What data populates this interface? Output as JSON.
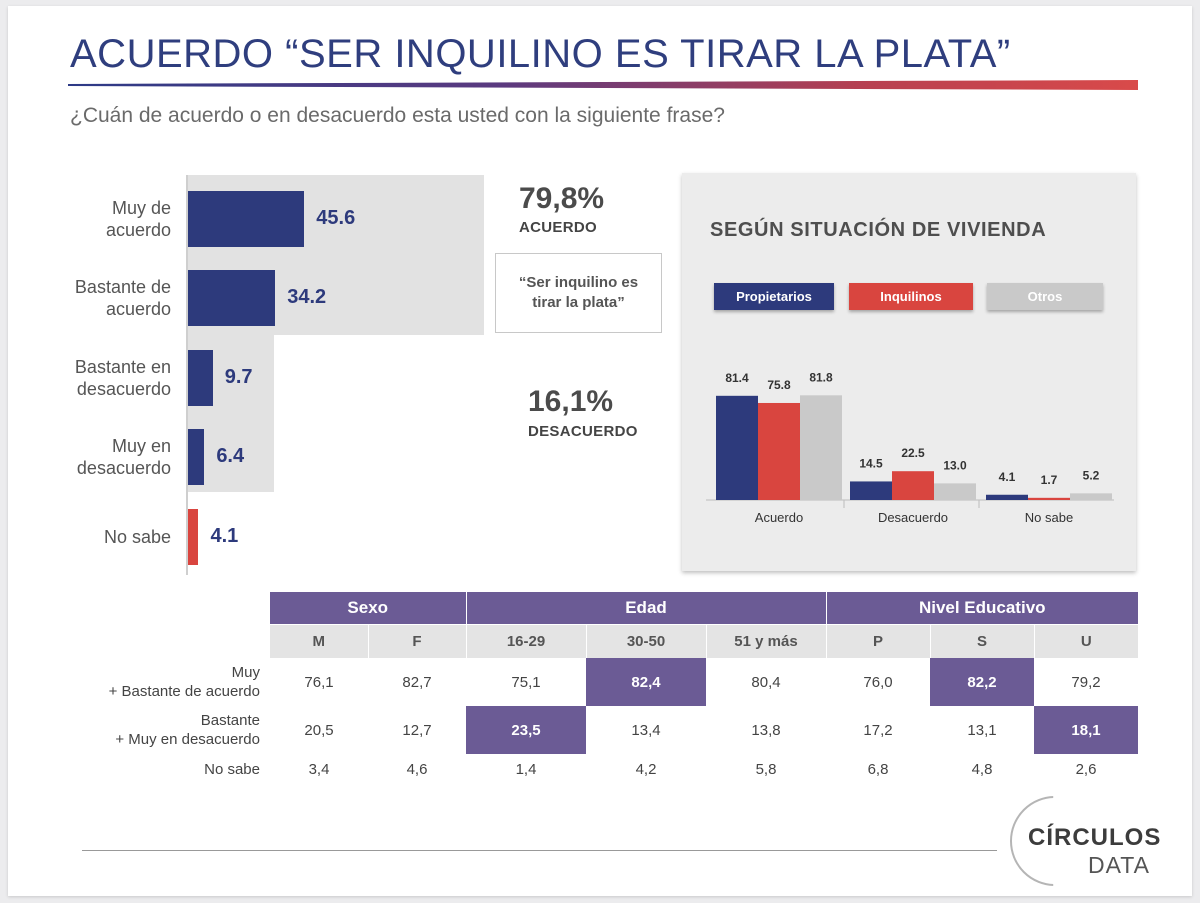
{
  "title": "ACUERDO “SER INQUILINO ES TIRAR LA PLATA”",
  "subtitle": "¿Cuán de acuerdo o en desacuerdo esta usted con la siguiente frase?",
  "summary": {
    "acuerdo_value": "79,8%",
    "acuerdo_label": "ACUERDO",
    "desacuerdo_value": "16,1%",
    "desacuerdo_label": "DESACUERDO",
    "quote": "“Ser inquilino es tirar la plata”"
  },
  "colors": {
    "navy": "#2d3a7c",
    "red": "#d9453f",
    "gray": "#c9c9c9",
    "purple": "#6b5b95"
  },
  "chart_data": [
    {
      "type": "bar",
      "orientation": "horizontal",
      "categories": [
        "Muy de acuerdo",
        "Bastante de acuerdo",
        "Bastante en desacuerdo",
        "Muy en desacuerdo",
        "No sabe"
      ],
      "labels": [
        [
          "Muy de",
          "acuerdo"
        ],
        [
          "Bastante de",
          "acuerdo"
        ],
        [
          "Bastante en",
          "desacuerdo"
        ],
        [
          "Muy en",
          "desacuerdo"
        ],
        [
          "No sabe"
        ]
      ],
      "values": [
        45.6,
        34.2,
        9.7,
        6.4,
        4.1
      ],
      "value_labels": [
        "45.6",
        "34.2",
        "9.7",
        "6.4",
        "4.1"
      ],
      "bar_colors": [
        "#2d3a7c",
        "#2d3a7c",
        "#2d3a7c",
        "#2d3a7c",
        "#d9453f"
      ]
    },
    {
      "type": "bar",
      "title": "SEGÚN SITUACIÓN DE VIVIENDA",
      "categories": [
        "Acuerdo",
        "Desacuerdo",
        "No sabe"
      ],
      "series": [
        {
          "name": "Propietarios",
          "color": "#2d3a7c",
          "values": [
            81.4,
            14.5,
            4.1
          ],
          "value_labels": [
            "81.4",
            "14.5",
            "4.1"
          ]
        },
        {
          "name": "Inquilinos",
          "color": "#d9453f",
          "values": [
            75.8,
            22.5,
            1.7
          ],
          "value_labels": [
            "75.8",
            "22.5",
            "1.7"
          ]
        },
        {
          "name": "Otros",
          "color": "#c9c9c9",
          "values": [
            81.8,
            13.0,
            5.2
          ],
          "value_labels": [
            "81.8",
            "13.0",
            "5.2"
          ]
        }
      ],
      "ylim": [
        0,
        100
      ],
      "legend": "top"
    }
  ],
  "table": {
    "groups": [
      "Sexo",
      "Edad",
      "Nivel Educativo"
    ],
    "subheaders": [
      "M",
      "F",
      "16-29",
      "30-50",
      "51 y más",
      "P",
      "S",
      "U"
    ],
    "rows": [
      {
        "label1": "Muy",
        "label2": "+ Bastante de acuerdo",
        "cells": [
          "76,1",
          "82,7",
          "75,1",
          "82,4",
          "80,4",
          "76,0",
          "82,2",
          "79,2"
        ],
        "highlight": [
          3,
          6
        ]
      },
      {
        "label1": "Bastante",
        "label2": "+ Muy en desacuerdo",
        "cells": [
          "20,5",
          "12,7",
          "23,5",
          "13,4",
          "13,8",
          "17,2",
          "13,1",
          "18,1"
        ],
        "highlight": [
          2,
          7
        ]
      },
      {
        "label1": "No sabe",
        "label2": "",
        "cells": [
          "3,4",
          "4,6",
          "1,4",
          "4,2",
          "5,8",
          "6,8",
          "4,8",
          "2,6"
        ],
        "highlight": []
      }
    ]
  },
  "logo": {
    "line1": "CÍRCULOS",
    "line2": "DATA"
  }
}
